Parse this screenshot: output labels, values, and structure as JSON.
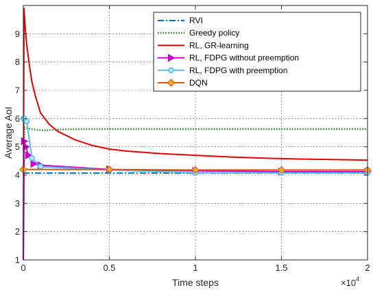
{
  "chart_data": {
    "type": "line",
    "xlabel": "Time steps",
    "ylabel": "Average AoI",
    "x_exponent_label": "×10",
    "x_exponent_power": "4",
    "xlim": [
      0,
      20000
    ],
    "ylim": [
      1,
      10
    ],
    "x_ticks": [
      0,
      5000,
      10000,
      15000,
      20000
    ],
    "x_tick_labels": [
      "0",
      "0.5",
      "1",
      "1.5",
      "2"
    ],
    "y_ticks": [
      1,
      2,
      3,
      4,
      5,
      6,
      7,
      8,
      9
    ],
    "y_tick_labels": [
      "1",
      "2",
      "3",
      "4",
      "5",
      "6",
      "7",
      "8",
      "9"
    ],
    "grid": true,
    "legend_position": "top-right",
    "series": [
      {
        "name": "RVI",
        "color": "#0072BD",
        "style": "dashdot",
        "marker": "none",
        "x": [
          0,
          20000
        ],
        "y": [
          4.07,
          4.07
        ]
      },
      {
        "name": "Greedy policy",
        "color": "#228B22",
        "style": "dotted",
        "marker": "none",
        "x": [
          0,
          60,
          150,
          300,
          500,
          800,
          1200,
          1700,
          2500,
          3500,
          5000,
          7000,
          10000,
          13000,
          16000,
          20000
        ],
        "y": [
          1.0,
          5.7,
          5.67,
          5.65,
          5.63,
          5.6,
          5.58,
          5.6,
          5.62,
          5.63,
          5.63,
          5.63,
          5.63,
          5.63,
          5.63,
          5.63
        ]
      },
      {
        "name": "RL, GR-learning",
        "color": "#E00000",
        "style": "solid",
        "marker": "none",
        "x": [
          0,
          40,
          100,
          200,
          350,
          500,
          700,
          1000,
          1500,
          2000,
          2500,
          3000,
          4000,
          5000,
          6000,
          8000,
          10000,
          12000,
          14000,
          16000,
          18000,
          20000
        ],
        "y": [
          1.0,
          9.9,
          9.3,
          8.6,
          7.9,
          7.3,
          6.8,
          6.2,
          5.8,
          5.55,
          5.4,
          5.25,
          5.05,
          4.92,
          4.85,
          4.76,
          4.7,
          4.64,
          4.6,
          4.57,
          4.55,
          4.53
        ]
      },
      {
        "name": "RL, FDPG without preemption",
        "color": "#CC00CC",
        "style": "solid",
        "marker": "triangle-right",
        "x": [
          0,
          50,
          150,
          300,
          600,
          1000,
          5000,
          10000,
          15000,
          20000
        ],
        "y": [
          1.0,
          5.2,
          5.0,
          4.7,
          4.4,
          4.35,
          4.2,
          4.15,
          4.12,
          4.12
        ]
      },
      {
        "name": "RL, FDPG with preemption",
        "color": "#4DBEEE",
        "style": "solid",
        "marker": "circle",
        "x": [
          0,
          60,
          200,
          500,
          1000,
          5000,
          10000,
          15000,
          20000
        ],
        "y": [
          6.0,
          6.0,
          5.9,
          4.6,
          4.3,
          4.18,
          4.08,
          4.08,
          4.08
        ]
      },
      {
        "name": "DQN",
        "color": "#EDB120",
        "line_color": "#D95319",
        "style": "solid",
        "marker": "diamond",
        "x": [
          0,
          5000,
          10000,
          15000,
          20000
        ],
        "y": [
          4.2,
          4.2,
          4.18,
          4.18,
          4.18
        ]
      }
    ]
  }
}
